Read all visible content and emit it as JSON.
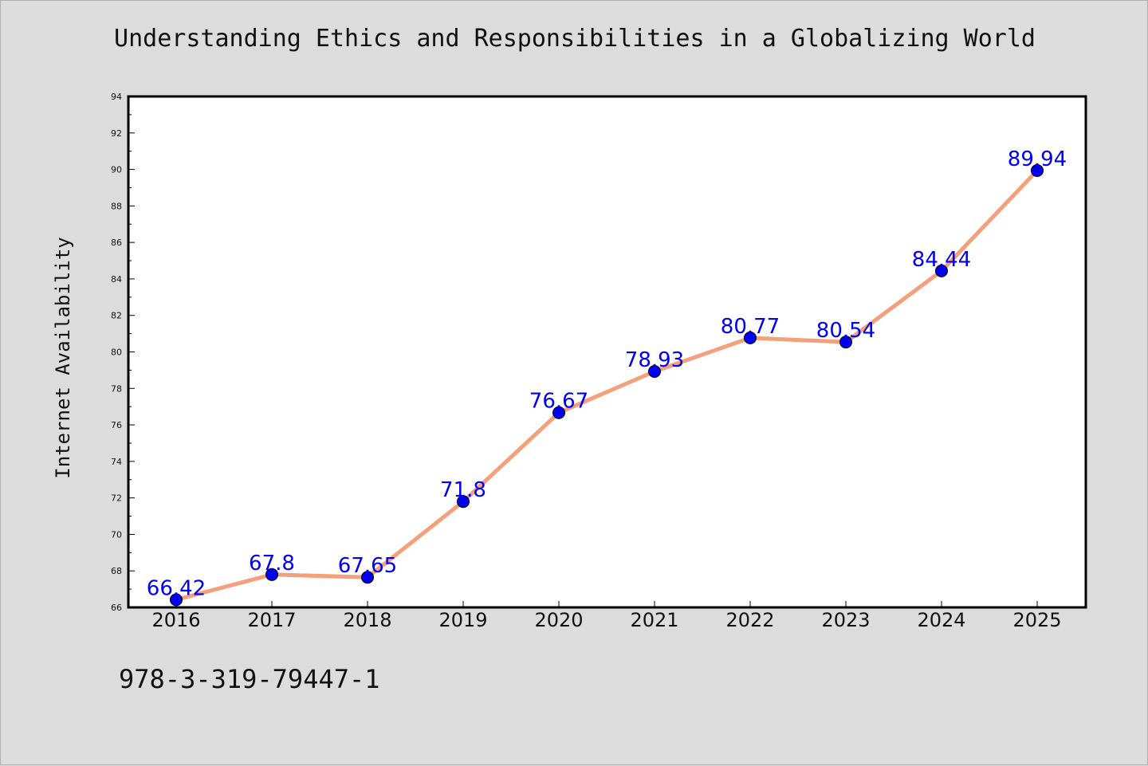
{
  "chart_data": {
    "type": "line",
    "title": "Understanding Ethics and Responsibilities in a Globalizing World",
    "xlabel": "",
    "ylabel": "Internet Availability",
    "categories": [
      "2016",
      "2017",
      "2018",
      "2019",
      "2020",
      "2021",
      "2022",
      "2023",
      "2024",
      "2025"
    ],
    "values": [
      66.42,
      67.8,
      67.65,
      71.8,
      76.67,
      78.93,
      80.77,
      80.54,
      84.44,
      89.94
    ],
    "data_labels": [
      "66.42",
      "67.8",
      "67.65",
      "71.8",
      "76.67",
      "78.93",
      "80.77",
      "80.54",
      "84.44",
      "89.94"
    ],
    "ylim": [
      66,
      94
    ],
    "yticks": [
      66,
      68,
      70,
      72,
      74,
      76,
      78,
      80,
      82,
      84,
      86,
      88,
      90,
      92,
      94
    ],
    "grid": false,
    "line_color": "#f4a07c",
    "marker_color": "#0000ee",
    "label_color": "#0000ee"
  },
  "footer": {
    "code": "978-3-319-79447-1"
  }
}
